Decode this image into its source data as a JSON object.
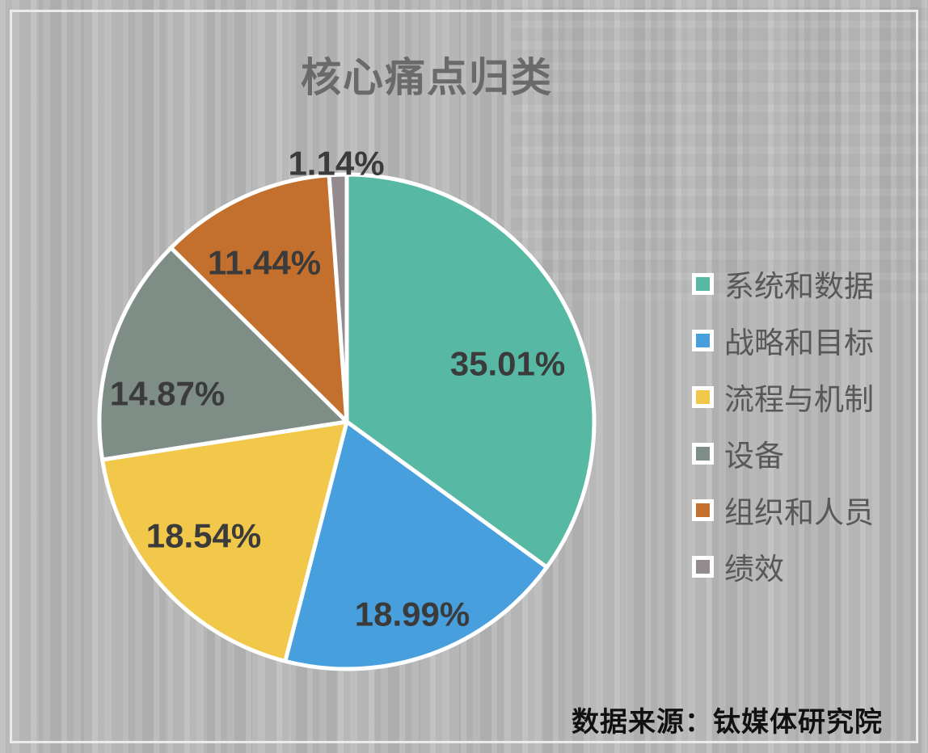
{
  "title": "核心痛点归类",
  "source_note": "数据来源：钛媒体研究院",
  "colors": {
    "background": "#b8b8b8",
    "frame_border": "#ebebeb",
    "title_text": "#6a6a6a",
    "data_label_text": "#3b3b3b",
    "legend_text": "#58585a",
    "source_text": "#111111",
    "slice_stroke": "#ffffff"
  },
  "chart_data": {
    "type": "pie",
    "title": "核心痛点归类",
    "categories": [
      "系统和数据",
      "战略和目标",
      "流程与机制",
      "设备",
      "组织和人员",
      "绩效"
    ],
    "values": [
      35.01,
      18.99,
      18.54,
      14.87,
      11.44,
      1.14
    ],
    "data_labels": [
      "35.01%",
      "18.99%",
      "18.54%",
      "14.87%",
      "11.44%",
      "1.14%"
    ],
    "slice_colors": [
      "#57b9a3",
      "#479fdd",
      "#f1c84a",
      "#7e8d86",
      "#c3702e",
      "#938b8e"
    ],
    "legend_position": "right",
    "start_angle_deg": 0,
    "direction": "clockwise",
    "source_note": "数据来源：钛媒体研究院"
  }
}
